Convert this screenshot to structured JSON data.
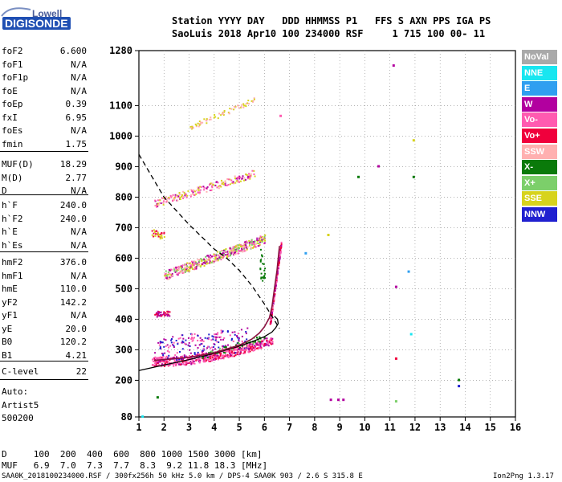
{
  "logo": {
    "line1": "Lowell",
    "line2": "DIGISONDE"
  },
  "header": {
    "row1": "Station YYYY DAY   DDD HHMMSS P1   FFS S AXN PPS IGA PS",
    "row2": "SaoLuis 2018 Apr10 100 234000 RSF     1 715 100 00- 11"
  },
  "params": {
    "group1": [
      {
        "label": "foF2",
        "value": "6.600"
      },
      {
        "label": "foF1",
        "value": "N/A"
      },
      {
        "label": "foF1p",
        "value": "N/A"
      },
      {
        "label": "foE",
        "value": "N/A"
      },
      {
        "label": "foEp",
        "value": "0.39"
      },
      {
        "label": "fxI",
        "value": "6.95"
      },
      {
        "label": "foEs",
        "value": "N/A"
      },
      {
        "label": "fmin",
        "value": "1.75"
      }
    ],
    "group2": [
      {
        "label": "MUF(D)",
        "value": "18.29"
      },
      {
        "label": "M(D)",
        "value": "2.77"
      },
      {
        "label": "D",
        "value": "N/A"
      }
    ],
    "group3": [
      {
        "label": "h`F",
        "value": "240.0"
      },
      {
        "label": "h`F2",
        "value": "240.0"
      },
      {
        "label": "h`E",
        "value": "N/A"
      },
      {
        "label": "h`Es",
        "value": "N/A"
      }
    ],
    "group4": [
      {
        "label": "hmF2",
        "value": "376.0"
      },
      {
        "label": "hmF1",
        "value": "N/A"
      },
      {
        "label": "hmE",
        "value": "110.0"
      },
      {
        "label": "yF2",
        "value": "142.2"
      },
      {
        "label": "yF1",
        "value": "N/A"
      },
      {
        "label": "yE",
        "value": "20.0"
      },
      {
        "label": "B0",
        "value": "120.2"
      },
      {
        "label": "B1",
        "value": "4.21"
      }
    ],
    "group5": [
      {
        "label": "C-level",
        "value": "22"
      }
    ],
    "extra": [
      "Auto:",
      "Artist5",
      "500200"
    ]
  },
  "legend": [
    {
      "label": "NoVal",
      "color": "#a9a9a9"
    },
    {
      "label": "NNE",
      "color": "#19e6f0"
    },
    {
      "label": "E",
      "color": "#2f9ff0"
    },
    {
      "label": "W",
      "color": "#b2009f"
    },
    {
      "label": "Vo-",
      "color": "#ff5bb0"
    },
    {
      "label": "Vo+",
      "color": "#f0003c"
    },
    {
      "label": "SSW",
      "color": "#ffb0b0"
    },
    {
      "label": "X-",
      "color": "#0a7a0a"
    },
    {
      "label": "X+",
      "color": "#7ccf6a"
    },
    {
      "label": "SSE",
      "color": "#d7d31d"
    },
    {
      "label": "NNW",
      "color": "#2020d0"
    }
  ],
  "footer": {
    "d_row": "D     100  200  400  600  800 1000 1500 3000 [km]",
    "muf_row": "MUF   6.9  7.0  7.3  7.7  8.3  9.2 11.8 18.3 [MHz]",
    "source": "SAA0K_2018100234000.RSF / 300fx256h 50 kHz 5.0 km / DPS-4 SAA0K 903 / 2.6 S 315.8 E",
    "version": "Ion2Png 1.3.17"
  },
  "chart_data": {
    "type": "scatter",
    "x_ticks": [
      "1",
      "2",
      "3",
      "4",
      "5",
      "6",
      "7",
      "8",
      "9",
      "10",
      "11",
      "12",
      "13",
      "14",
      "15",
      "16"
    ],
    "y_ticks": [
      "80",
      "200",
      "300",
      "400",
      "500",
      "600",
      "700",
      "800",
      "900",
      "1000",
      "1100",
      "1280"
    ],
    "xlim": [
      1,
      16
    ],
    "ylim": [
      80,
      1280
    ],
    "profile_curve": [
      [
        1,
        232
      ],
      [
        2,
        250
      ],
      [
        3,
        268
      ],
      [
        4,
        288
      ],
      [
        5,
        312
      ],
      [
        5.5,
        326
      ],
      [
        6,
        343
      ],
      [
        6.3,
        358
      ],
      [
        6.45,
        372
      ],
      [
        6.55,
        386
      ],
      [
        6.52,
        400
      ],
      [
        6.4,
        410
      ]
    ],
    "trace_curve": [
      [
        1.6,
        265
      ],
      [
        2,
        268
      ],
      [
        3,
        275
      ],
      [
        4,
        290
      ],
      [
        5,
        315
      ],
      [
        5.5,
        335
      ],
      [
        5.8,
        355
      ],
      [
        6.0,
        375
      ],
      [
        6.2,
        405
      ],
      [
        6.3,
        440
      ],
      [
        6.4,
        500
      ],
      [
        6.5,
        560
      ],
      [
        6.6,
        640
      ]
    ],
    "muf_dashed": [
      [
        1,
        940
      ],
      [
        1.5,
        870
      ],
      [
        2,
        800
      ],
      [
        2.5,
        755
      ],
      [
        3,
        710
      ],
      [
        3.5,
        670
      ],
      [
        4,
        630
      ],
      [
        4.5,
        600
      ],
      [
        5,
        560
      ],
      [
        5.5,
        510
      ],
      [
        6,
        450
      ],
      [
        6.3,
        410
      ],
      [
        6.6,
        370
      ]
    ]
  }
}
